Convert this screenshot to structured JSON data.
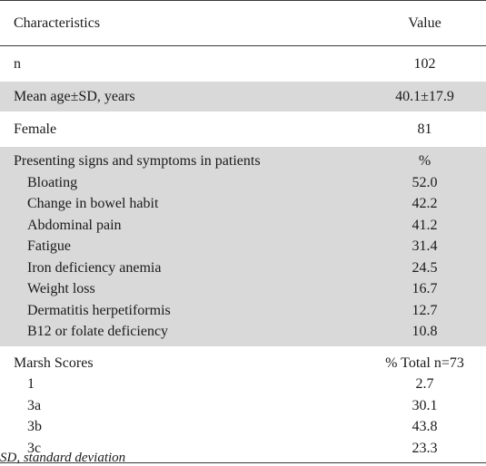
{
  "table": {
    "header": {
      "characteristics": "Characteristics",
      "value": "Value"
    },
    "rows": [
      {
        "label": "n",
        "value": "102"
      },
      {
        "label": "Mean age±SD, years",
        "value": "40.1±17.9"
      },
      {
        "label": "Female",
        "value": "81"
      }
    ],
    "signs": {
      "heading": "Presenting signs and symptoms in patients",
      "unit": "%",
      "items": [
        {
          "label": "Bloating",
          "value": "52.0"
        },
        {
          "label": "Change in bowel habit",
          "value": "42.2"
        },
        {
          "label": "Abdominal pain",
          "value": "41.2"
        },
        {
          "label": "Fatigue",
          "value": "31.4"
        },
        {
          "label": "Iron deficiency anemia",
          "value": "24.5"
        },
        {
          "label": "Weight loss",
          "value": "16.7"
        },
        {
          "label": "Dermatitis herpetiformis",
          "value": "12.7"
        },
        {
          "label": "B12 or folate deficiency",
          "value": "10.8"
        }
      ]
    },
    "marsh": {
      "heading": "Marsh Scores",
      "unit": "% Total n=73",
      "items": [
        {
          "label": "1",
          "value": "2.7"
        },
        {
          "label": "3a",
          "value": "30.1"
        },
        {
          "label": "3b",
          "value": "43.8"
        },
        {
          "label": "3c",
          "value": "23.3"
        }
      ]
    }
  },
  "footnote": "SD, standard deviation"
}
